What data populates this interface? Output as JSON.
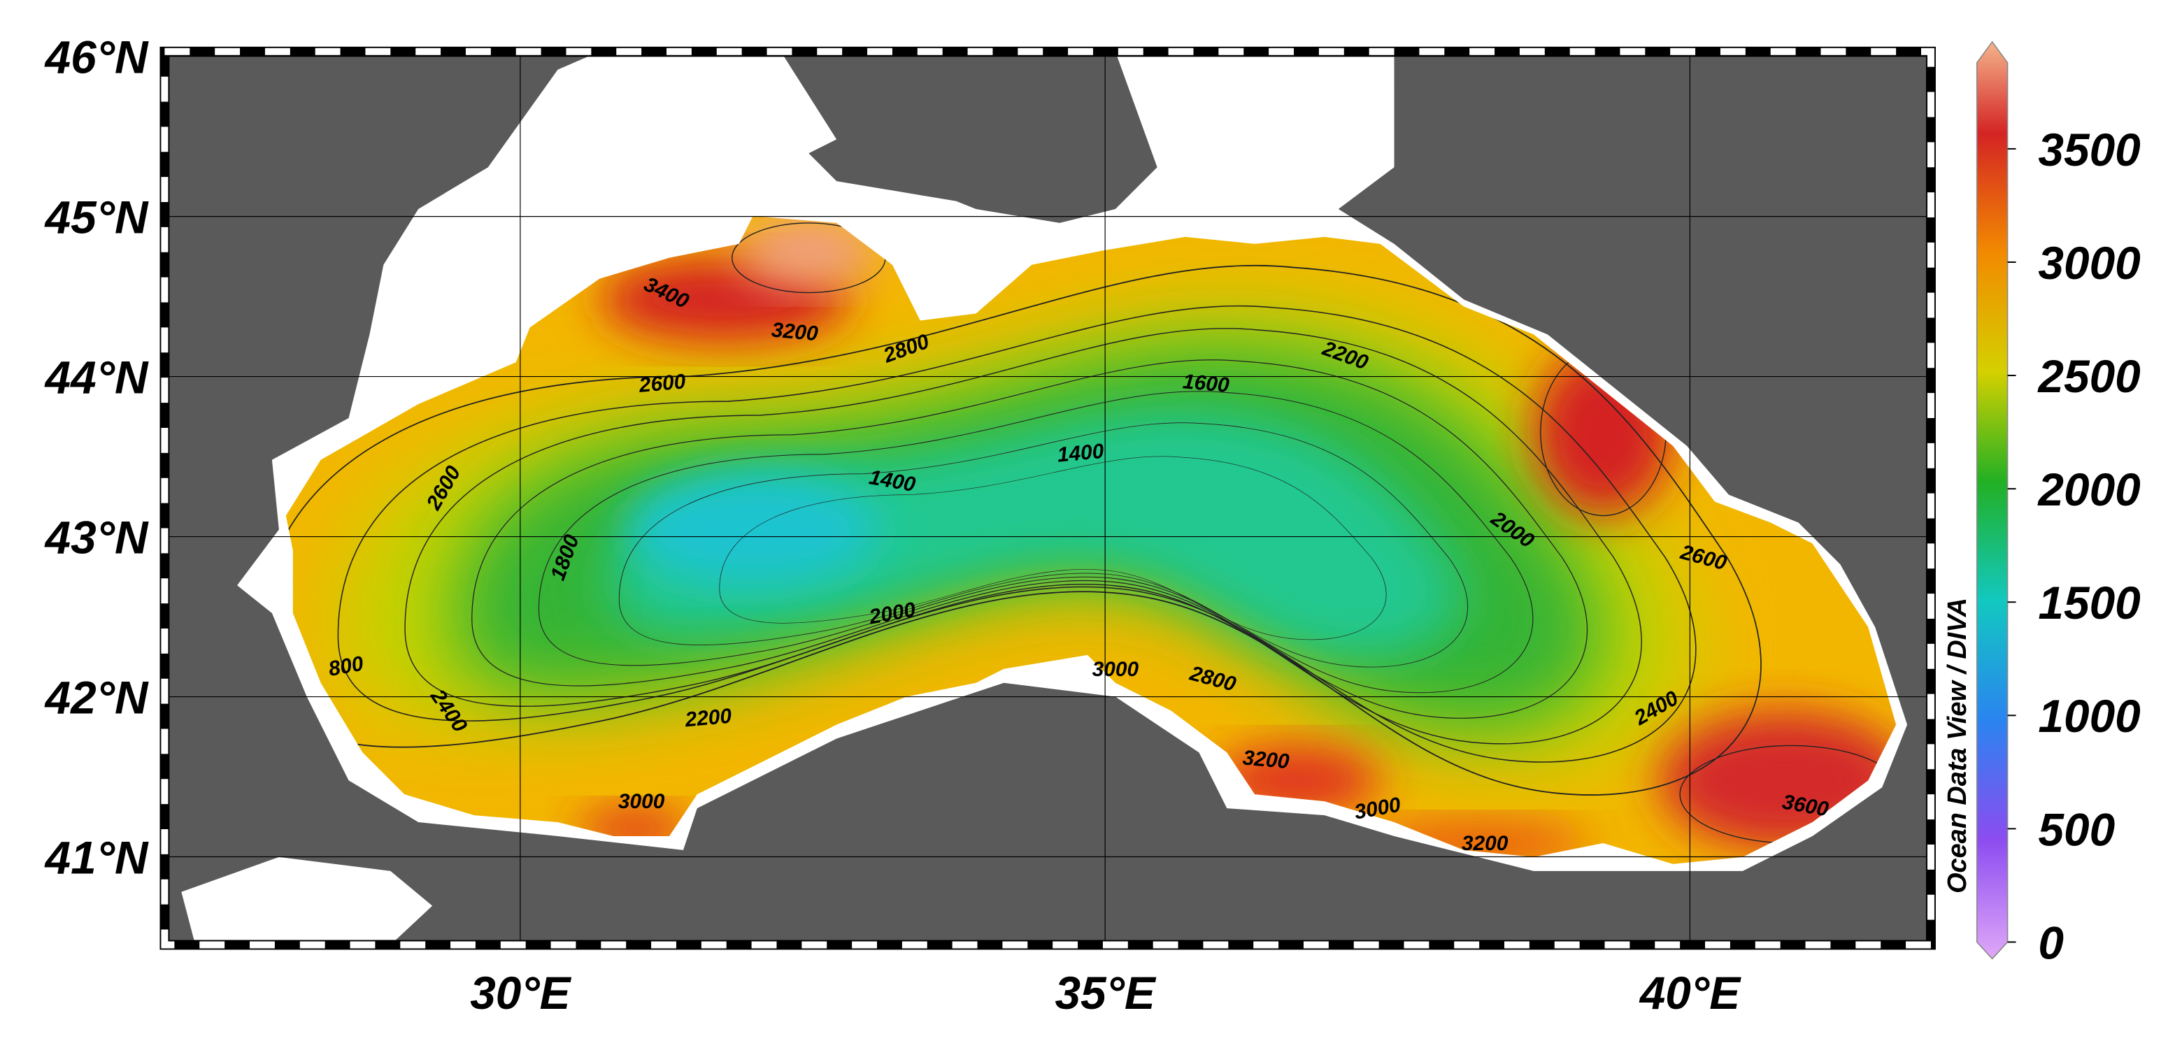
{
  "map": {
    "lonlim": [
      26.96,
      42.06
    ],
    "latlim": [
      40.45,
      46.03
    ],
    "lon_ticks": [
      {
        "value": 30,
        "label": "30°E"
      },
      {
        "value": 35,
        "label": "35°E"
      },
      {
        "value": 40,
        "label": "40°E"
      }
    ],
    "lat_ticks": [
      {
        "value": 41,
        "label": "41°N"
      },
      {
        "value": 42,
        "label": "42°N"
      },
      {
        "value": 43,
        "label": "43°N"
      },
      {
        "value": 44,
        "label": "44°N"
      },
      {
        "value": 45,
        "label": "45°N"
      },
      {
        "value": 46,
        "label": "46°N"
      }
    ],
    "grid": true,
    "contour_labels": [
      1400,
      1400,
      1600,
      1800,
      2000,
      2000,
      2200,
      2200,
      2400,
      2400,
      2600,
      2600,
      2600,
      2800,
      2800,
      3000,
      3000,
      3000,
      3200,
      3200,
      3200,
      3400,
      3600,
      800
    ]
  },
  "colorbar": {
    "label": "Ocean Data View / DIVA",
    "clim": [
      0,
      3880
    ],
    "ticks": [
      0,
      500,
      1000,
      1500,
      2000,
      2500,
      3000,
      3500
    ]
  }
}
